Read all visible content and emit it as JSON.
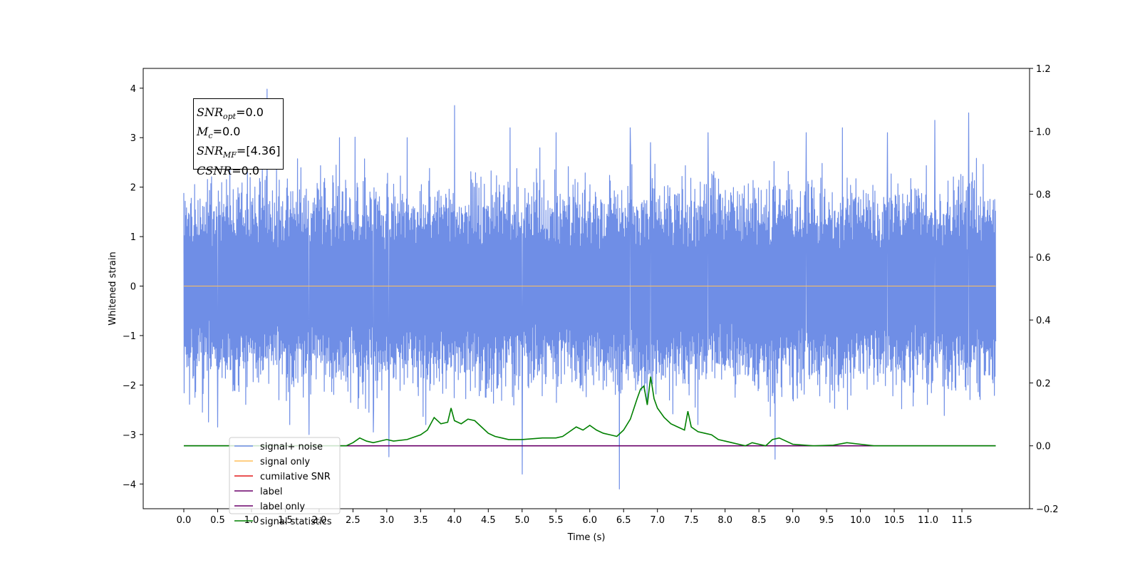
{
  "chart_data": {
    "type": "line",
    "title": "",
    "xlabel": "Time (s)",
    "ylabel": "Whitened strain",
    "xlim": [
      -0.6,
      12.5
    ],
    "ylim": [
      -4.5,
      4.4
    ],
    "y2lim": [
      -0.2,
      1.2
    ],
    "x_ticks": [
      0.0,
      0.5,
      1.0,
      1.5,
      2.0,
      2.5,
      3.0,
      3.5,
      4.0,
      4.5,
      5.0,
      5.5,
      6.0,
      6.5,
      7.0,
      7.5,
      8.0,
      8.5,
      9.0,
      9.5,
      10.0,
      10.5,
      11.0,
      11.5
    ],
    "x_tick_labels": [
      "0.0",
      "0.5",
      "1.0",
      "1.5",
      "2.0",
      "2.5",
      "3.0",
      "3.5",
      "4.0",
      "4.5",
      "5.0",
      "5.5",
      "6.0",
      "6.5",
      "7.0",
      "7.5",
      "8.0",
      "8.5",
      "9.0",
      "9.5",
      "10.0",
      "10.5",
      "11.0",
      "11.5"
    ],
    "y_ticks": [
      4,
      3,
      2,
      1,
      0,
      -1,
      -2,
      -3,
      -4
    ],
    "y_tick_labels": [
      "4",
      "3",
      "2",
      "1",
      "0",
      "−1",
      "−2",
      "−3",
      "−4"
    ],
    "y2_ticks": [
      1.2,
      1.0,
      0.8,
      0.6,
      0.4,
      0.2,
      0.0,
      -0.2
    ],
    "y2_tick_labels": [
      "1.2",
      "1.0",
      "0.8",
      "0.6",
      "0.4",
      "0.2",
      "0.0",
      "−0.2"
    ],
    "legend_position": "lower-left",
    "grid": false,
    "series": [
      {
        "name": "signal+ noise",
        "color": "#6f8ee6",
        "axis": "left",
        "x_range": [
          0.0,
          12.0
        ],
        "n_samples": 2400,
        "typical_range": [
          -1.9,
          2.3
        ],
        "spikes": [
          [
            1.23,
            3.98
          ],
          [
            4.0,
            3.65
          ],
          [
            5.0,
            -3.8
          ],
          [
            6.44,
            -4.1
          ],
          [
            8.74,
            -3.5
          ],
          [
            3.03,
            -3.45
          ],
          [
            1.85,
            -3.0
          ],
          [
            6.9,
            2.9
          ],
          [
            11.6,
            3.5
          ],
          [
            11.1,
            3.35
          ],
          [
            6.6,
            3.2
          ],
          [
            10.4,
            3.1
          ],
          [
            9.2,
            3.1
          ],
          [
            2.3,
            3.0
          ],
          [
            3.3,
            3.0
          ],
          [
            5.5,
            3.1
          ],
          [
            7.75,
            3.1
          ],
          [
            2.8,
            -2.95
          ],
          [
            0.5,
            -2.85
          ],
          [
            7.6,
            -2.8
          ]
        ]
      },
      {
        "name": "signal only",
        "color": "#ffbf5a",
        "axis": "left",
        "x": [
          0.0,
          12.0
        ],
        "y": [
          0.0,
          0.0
        ]
      },
      {
        "name": "cumilative SNR",
        "color": "#e41a1c",
        "axis": "right",
        "x": [],
        "y": []
      },
      {
        "name": "label",
        "color": "#6a006a",
        "axis": "right",
        "x": [
          0.0,
          12.0
        ],
        "y": [
          0.0,
          0.0
        ]
      },
      {
        "name": "label only",
        "color": "#6a006a",
        "axis": "right",
        "x": [],
        "y": []
      },
      {
        "name": "signal statistics",
        "color": "#008000",
        "axis": "right",
        "x": [
          0.0,
          0.5,
          1.0,
          1.5,
          2.0,
          2.4,
          2.5,
          2.6,
          2.7,
          2.8,
          3.0,
          3.1,
          3.3,
          3.5,
          3.6,
          3.7,
          3.8,
          3.9,
          3.95,
          4.0,
          4.1,
          4.2,
          4.3,
          4.4,
          4.5,
          4.6,
          4.7,
          4.8,
          5.0,
          5.3,
          5.5,
          5.6,
          5.7,
          5.8,
          5.9,
          6.0,
          6.1,
          6.2,
          6.3,
          6.4,
          6.5,
          6.6,
          6.7,
          6.75,
          6.8,
          6.85,
          6.9,
          6.95,
          7.0,
          7.1,
          7.2,
          7.3,
          7.4,
          7.45,
          7.5,
          7.6,
          7.7,
          7.8,
          7.9,
          8.0,
          8.1,
          8.2,
          8.3,
          8.4,
          8.5,
          8.6,
          8.7,
          8.8,
          9.0,
          9.3,
          9.6,
          9.8,
          10.0,
          10.2,
          11.0,
          12.0
        ],
        "y": [
          0.0,
          0.0,
          0.0,
          0.0,
          0.0,
          0.0,
          0.01,
          0.025,
          0.015,
          0.01,
          0.02,
          0.015,
          0.02,
          0.035,
          0.05,
          0.09,
          0.07,
          0.075,
          0.12,
          0.08,
          0.07,
          0.085,
          0.08,
          0.06,
          0.04,
          0.03,
          0.025,
          0.02,
          0.02,
          0.025,
          0.025,
          0.03,
          0.045,
          0.06,
          0.05,
          0.065,
          0.05,
          0.04,
          0.035,
          0.03,
          0.05,
          0.085,
          0.15,
          0.18,
          0.19,
          0.13,
          0.22,
          0.15,
          0.12,
          0.09,
          0.07,
          0.06,
          0.05,
          0.11,
          0.06,
          0.045,
          0.04,
          0.035,
          0.02,
          0.015,
          0.01,
          0.005,
          0.0,
          0.01,
          0.005,
          0.0,
          0.02,
          0.025,
          0.005,
          0.0,
          0.002,
          0.01,
          0.005,
          0.0,
          0.0,
          0.0
        ]
      }
    ],
    "legend": [
      "signal+ noise",
      "signal only",
      "cumilative SNR",
      "label",
      "label only",
      "signal statistics"
    ]
  },
  "info_box": {
    "lines": [
      {
        "var": "SNR",
        "sub": "opt",
        "value": "=0.0"
      },
      {
        "var": "M",
        "sub": "c",
        "value": "=0.0"
      },
      {
        "var": "SNR",
        "sub": "MF",
        "value": "=[4.36]"
      },
      {
        "var": "CSNR",
        "sub": "",
        "value": "=0.0"
      }
    ]
  }
}
